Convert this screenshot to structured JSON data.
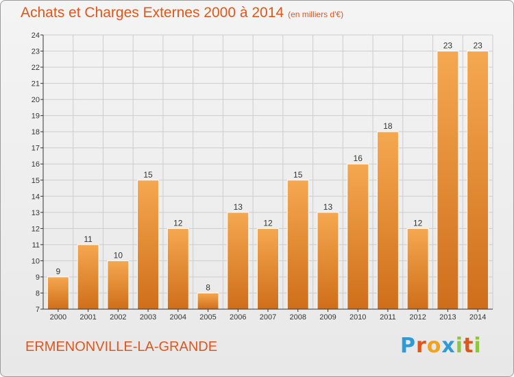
{
  "header": {
    "title": "Achats et Charges Externes 2000 à 2014",
    "subtitle": "(en milliers d'€)"
  },
  "footer": {
    "city": "ERMENONVILLE-LA-GRANDE",
    "logo": [
      "P",
      "r",
      "o",
      "x",
      "i",
      "t",
      "i"
    ],
    "logo_colors": [
      "#2f9bd6",
      "#e0561a",
      "#f2a21b",
      "#2f9bd6",
      "#8dc63f",
      "#e0561a",
      "#8dc63f"
    ]
  },
  "colors": {
    "bar_top": "#f5a850",
    "bar_bottom": "#cf6e1a",
    "grid": "#cccccc"
  },
  "chart_data": {
    "type": "bar",
    "categories": [
      "2000",
      "2001",
      "2002",
      "2003",
      "2004",
      "2005",
      "2006",
      "2007",
      "2008",
      "2009",
      "2010",
      "2011",
      "2012",
      "2013",
      "2014"
    ],
    "values": [
      9,
      11,
      10,
      15,
      12,
      8,
      13,
      12,
      15,
      13,
      16,
      18,
      12,
      23,
      23
    ],
    "ylim": [
      7,
      24
    ],
    "yticks": [
      7,
      8,
      9,
      10,
      11,
      12,
      13,
      14,
      15,
      16,
      17,
      18,
      19,
      20,
      21,
      22,
      23,
      24
    ],
    "grid": true,
    "xlabel": "",
    "ylabel": ""
  }
}
